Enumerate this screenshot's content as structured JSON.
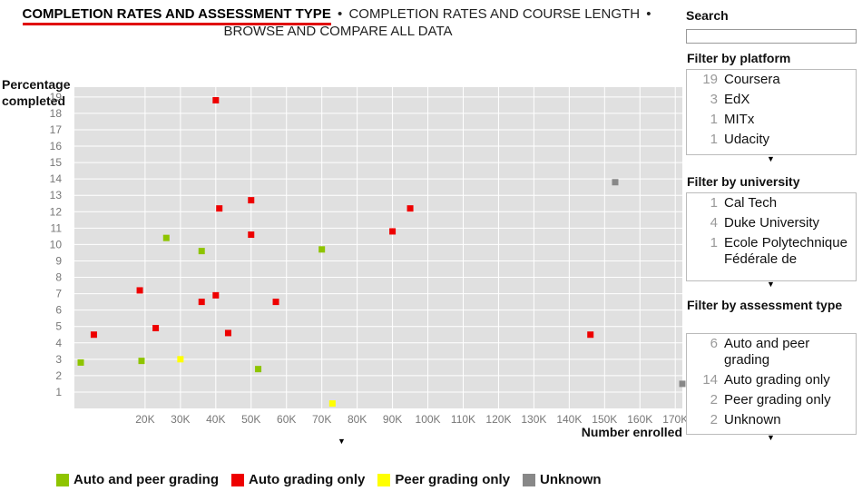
{
  "nav": {
    "active": "COMPLETION RATES AND ASSESSMENT TYPE",
    "link1": "COMPLETION RATES AND COURSE LENGTH",
    "link2": "BROWSE AND COMPARE ALL DATA",
    "separator": "•"
  },
  "search": {
    "title": "Search",
    "value": ""
  },
  "filters": {
    "platform": {
      "title": "Filter by platform",
      "items": [
        {
          "count": "19",
          "label": "Coursera"
        },
        {
          "count": "3",
          "label": "EdX"
        },
        {
          "count": "1",
          "label": "MITx"
        },
        {
          "count": "1",
          "label": "Udacity"
        }
      ]
    },
    "university": {
      "title": "Filter by university",
      "items": [
        {
          "count": "1",
          "label": "Cal Tech"
        },
        {
          "count": "4",
          "label": "Duke University"
        },
        {
          "count": "1",
          "label": "Ecole Polytechnique Fédérale de"
        }
      ]
    },
    "assessment": {
      "title": "Filter by assessment type",
      "items": [
        {
          "count": "6",
          "label": "Auto and peer grading"
        },
        {
          "count": "14",
          "label": "Auto grading only"
        },
        {
          "count": "2",
          "label": "Peer grading only"
        },
        {
          "count": "2",
          "label": "Unknown"
        }
      ]
    }
  },
  "colors": {
    "Auto and peer grading": "#8ec400",
    "Auto grading only": "#ee0000",
    "Peer grading only": "#ffff00",
    "Unknown": "#888888"
  },
  "chart_data": {
    "type": "scatter",
    "xlabel": "Number enrolled",
    "ylabel": "Percentage completed",
    "xlim": [
      0,
      172000
    ],
    "ylim": [
      0,
      19.6
    ],
    "xticks": [
      "20K",
      "30K",
      "40K",
      "50K",
      "60K",
      "70K",
      "80K",
      "90K",
      "100K",
      "110K",
      "120K",
      "130K",
      "140K",
      "150K",
      "160K",
      "170K"
    ],
    "yticks": [
      "1",
      "2",
      "3",
      "4",
      "5",
      "6",
      "7",
      "8",
      "9",
      "10",
      "11",
      "12",
      "13",
      "14",
      "15",
      "16",
      "17",
      "18",
      "19"
    ],
    "grid": true,
    "legend_position": "bottom",
    "series": [
      {
        "name": "Auto and peer grading",
        "points": [
          [
            1800,
            2.8
          ],
          [
            19000,
            2.9
          ],
          [
            26000,
            10.4
          ],
          [
            36000,
            9.6
          ],
          [
            52000,
            2.4
          ],
          [
            70000,
            9.7
          ]
        ]
      },
      {
        "name": "Auto grading only",
        "points": [
          [
            5500,
            4.5
          ],
          [
            18500,
            7.2
          ],
          [
            23000,
            4.9
          ],
          [
            36000,
            6.5
          ],
          [
            40000,
            18.8
          ],
          [
            40000,
            6.9
          ],
          [
            41000,
            12.2
          ],
          [
            43500,
            4.6
          ],
          [
            50000,
            12.7
          ],
          [
            50000,
            10.6
          ],
          [
            57000,
            6.5
          ],
          [
            90000,
            10.8
          ],
          [
            95000,
            12.2
          ],
          [
            146000,
            4.5
          ]
        ]
      },
      {
        "name": "Peer grading only",
        "points": [
          [
            30000,
            3.0
          ],
          [
            73000,
            0.3
          ]
        ]
      },
      {
        "name": "Unknown",
        "points": [
          [
            153000,
            13.8
          ],
          [
            172000,
            1.5
          ]
        ]
      }
    ]
  }
}
